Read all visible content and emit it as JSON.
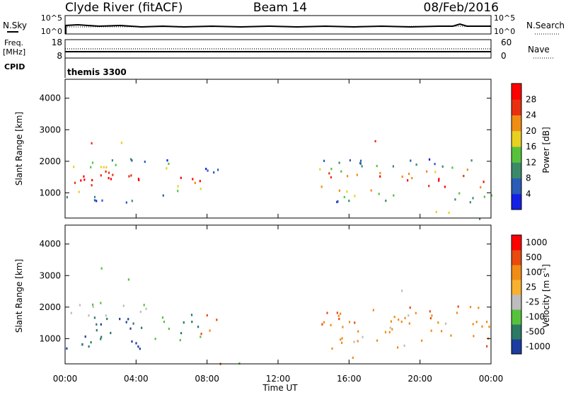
{
  "header": {
    "station": "Clyde River (fitACF)",
    "beam": "Beam 14",
    "date": "08/Feb/2016"
  },
  "nsky_panel": {
    "left_label": "N.Sky",
    "left_ticks": [
      "10^5",
      "10^0"
    ],
    "right_label": "N.Search",
    "right_ticks": [
      "10^5",
      "10^0"
    ]
  },
  "freq_panel": {
    "left_label_1": "Freq.",
    "left_label_2": "[MHz]",
    "left_ticks": [
      "18",
      "8"
    ],
    "right_label": "Nave",
    "right_ticks": [
      "60",
      "0"
    ]
  },
  "cpid": {
    "label": "CPID",
    "value": "themis 3300"
  },
  "chart_data": [
    {
      "type": "heatmap",
      "panel": "power",
      "ylabel": "Slant Range [km]",
      "y_ticks": [
        "1000",
        "2000",
        "3000",
        "4000"
      ],
      "ylim": [
        200,
        4600
      ],
      "x_ticks": [
        "00:00",
        "04:00",
        "08:00",
        "12:00",
        "16:00",
        "20:00",
        "00:00"
      ],
      "xlim_hours": [
        0,
        24
      ],
      "colorbar": {
        "label": "Power [dB]",
        "ticks": [
          "4",
          "8",
          "12",
          "16",
          "20",
          "24",
          "28"
        ],
        "colors": [
          "#1420e6",
          "#2a5cb8",
          "#3a8a6a",
          "#56c23c",
          "#e8d020",
          "#f08c14",
          "#e83010",
          "#ff0000"
        ]
      }
    },
    {
      "type": "heatmap",
      "panel": "velocity",
      "ylabel": "Slant Range [km]",
      "y_ticks": [
        "1000",
        "2000",
        "3000",
        "4000"
      ],
      "ylim": [
        200,
        4600
      ],
      "x_ticks": [
        "00:00",
        "04:00",
        "08:00",
        "12:00",
        "16:00",
        "20:00",
        "00:00"
      ],
      "xlim_hours": [
        0,
        24
      ],
      "xlabel": "Time UT",
      "colorbar": {
        "label": "Velocity [m s^-1]",
        "ticks": [
          "1000",
          "500",
          "100",
          "25",
          "-25",
          "-100",
          "-500",
          "-1000"
        ],
        "colors": [
          "#1c3ca0",
          "#2a7a64",
          "#56c23c",
          "#bdbdbd",
          "#f8b030",
          "#f08c14",
          "#e84a10",
          "#ff0000"
        ]
      }
    }
  ]
}
